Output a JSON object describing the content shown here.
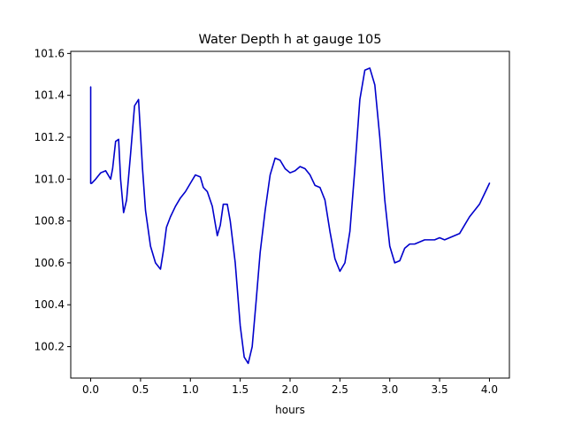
{
  "chart_data": {
    "type": "line",
    "title": "Water Depth h at gauge 105",
    "xlabel": "hours",
    "ylabel": "",
    "xlim": [
      -0.2,
      4.2
    ],
    "ylim": [
      100.05,
      101.61
    ],
    "xticks": [
      0.0,
      0.5,
      1.0,
      1.5,
      2.0,
      2.5,
      3.0,
      3.5,
      4.0
    ],
    "xtick_labels": [
      "0.0",
      "0.5",
      "1.0",
      "1.5",
      "2.0",
      "2.5",
      "3.0",
      "3.5",
      "4.0"
    ],
    "yticks": [
      100.2,
      100.4,
      100.6,
      100.8,
      101.0,
      101.2,
      101.4,
      101.6
    ],
    "ytick_labels": [
      "100.2",
      "100.4",
      "100.6",
      "100.8",
      "101.0",
      "101.2",
      "101.4",
      "101.6"
    ],
    "grid": false,
    "legend": "none",
    "series": [
      {
        "color": "#0000cc",
        "x": [
          0.0,
          0.0,
          0.01,
          0.05,
          0.1,
          0.15,
          0.2,
          0.22,
          0.25,
          0.28,
          0.3,
          0.33,
          0.36,
          0.4,
          0.44,
          0.48,
          0.52,
          0.55,
          0.6,
          0.65,
          0.7,
          0.73,
          0.76,
          0.8,
          0.85,
          0.9,
          0.95,
          1.0,
          1.05,
          1.1,
          1.13,
          1.17,
          1.22,
          1.27,
          1.3,
          1.33,
          1.37,
          1.4,
          1.45,
          1.5,
          1.54,
          1.58,
          1.62,
          1.66,
          1.7,
          1.75,
          1.8,
          1.85,
          1.9,
          1.95,
          2.0,
          2.05,
          2.1,
          2.15,
          2.2,
          2.25,
          2.3,
          2.35,
          2.4,
          2.45,
          2.5,
          2.55,
          2.6,
          2.65,
          2.7,
          2.75,
          2.8,
          2.85,
          2.9,
          2.95,
          3.0,
          3.05,
          3.1,
          3.15,
          3.2,
          3.25,
          3.3,
          3.35,
          3.4,
          3.45,
          3.5,
          3.55,
          3.6,
          3.65,
          3.7,
          3.75,
          3.8,
          3.85,
          3.9,
          3.95,
          4.0
        ],
        "y": [
          101.44,
          100.98,
          100.98,
          101.0,
          101.03,
          101.04,
          101.0,
          101.05,
          101.18,
          101.19,
          101.0,
          100.84,
          100.9,
          101.12,
          101.35,
          101.38,
          101.05,
          100.85,
          100.68,
          100.6,
          100.57,
          100.66,
          100.77,
          100.82,
          100.87,
          100.91,
          100.94,
          100.98,
          101.02,
          101.01,
          100.96,
          100.94,
          100.87,
          100.73,
          100.78,
          100.88,
          100.88,
          100.8,
          100.6,
          100.3,
          100.15,
          100.12,
          100.2,
          100.42,
          100.65,
          100.85,
          101.02,
          101.1,
          101.09,
          101.05,
          101.03,
          101.04,
          101.06,
          101.05,
          101.02,
          100.97,
          100.96,
          100.9,
          100.75,
          100.62,
          100.56,
          100.6,
          100.75,
          101.05,
          101.38,
          101.52,
          101.53,
          101.45,
          101.2,
          100.9,
          100.68,
          100.6,
          100.61,
          100.67,
          100.69,
          100.69,
          100.7,
          100.71,
          100.71,
          100.71,
          100.72,
          100.71,
          100.72,
          100.73,
          100.74,
          100.78,
          100.82,
          100.85,
          100.88,
          100.93,
          100.98
        ]
      }
    ]
  }
}
